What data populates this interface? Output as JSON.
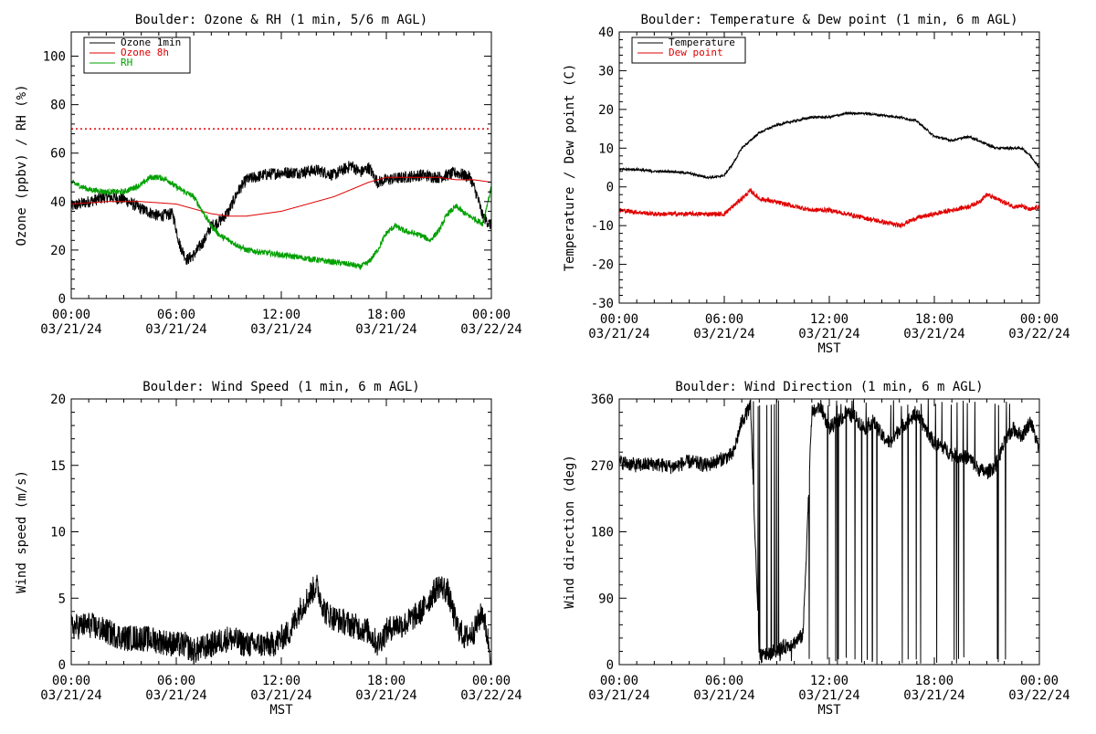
{
  "colors": {
    "black": "#000000",
    "red": "#e00000",
    "green": "#00a000"
  },
  "chart_data": [
    {
      "id": "ozone",
      "type": "line",
      "title": "Boulder: Ozone & RH (1 min, 5/6 m AGL)",
      "xlabel": "",
      "ylabel": "Ozone (ppbv) / RH (%)",
      "ylim": [
        0,
        110
      ],
      "yticks": [
        0,
        20,
        40,
        60,
        80,
        100
      ],
      "xlim": [
        0,
        24
      ],
      "xticks": [
        {
          "x": 0,
          "time": "00:00",
          "date": "03/21/24"
        },
        {
          "x": 6,
          "time": "06:00",
          "date": "03/21/24"
        },
        {
          "x": 12,
          "time": "12:00",
          "date": "03/21/24"
        },
        {
          "x": 18,
          "time": "18:00",
          "date": "03/21/24"
        },
        {
          "x": 24,
          "time": "00:00",
          "date": "03/22/24"
        }
      ],
      "grid": false,
      "legend": "top-left",
      "reference_line": {
        "y": 70,
        "color": "#e00000",
        "style": "dotted"
      },
      "series": [
        {
          "name": "Ozone 1min",
          "color": "#000000",
          "noise": 2.5,
          "x": [
            0,
            1,
            2,
            3,
            4,
            5,
            5.8,
            6.2,
            6.6,
            7,
            7.6,
            8,
            8.5,
            9,
            9.5,
            10,
            10.5,
            11,
            12,
            13,
            14,
            15,
            15.5,
            16,
            16.5,
            17,
            17.5,
            18,
            19,
            20,
            21,
            22,
            22.8,
            23.2,
            23.5,
            24
          ],
          "y": [
            38,
            40,
            42,
            41,
            37,
            34,
            35,
            22,
            16,
            18,
            24,
            30,
            32,
            36,
            44,
            49,
            50,
            51,
            52,
            52,
            53,
            51,
            53,
            55,
            52,
            54,
            48,
            49,
            50,
            51,
            50,
            52,
            50,
            42,
            34,
            30
          ]
        },
        {
          "name": "Ozone 8h",
          "color": "#e00000",
          "noise": 0,
          "x": [
            0,
            2,
            4,
            6,
            7,
            8,
            9,
            10,
            11,
            12,
            13,
            14,
            15,
            16,
            17,
            18,
            19,
            20,
            21,
            22,
            23,
            24
          ],
          "y": [
            39,
            40,
            40,
            39,
            37,
            35,
            34,
            34,
            35,
            36,
            38,
            40,
            42,
            45,
            48,
            50,
            50,
            50,
            50,
            49,
            49,
            48
          ]
        },
        {
          "name": "RH",
          "color": "#00a000",
          "noise": 1.2,
          "x": [
            0,
            1,
            2,
            3,
            4,
            4.5,
            5,
            5.5,
            6,
            7,
            7.5,
            8,
            8.5,
            9,
            9.5,
            10,
            11,
            12,
            13,
            14,
            15,
            16,
            16.5,
            17,
            17.5,
            18,
            18.5,
            19,
            20,
            20.5,
            21,
            21.5,
            22,
            22.5,
            23,
            23.5,
            24
          ],
          "y": [
            48,
            45,
            44,
            44,
            47,
            50,
            50,
            49,
            46,
            42,
            36,
            30,
            26,
            24,
            22,
            20,
            19,
            18,
            17,
            16,
            15,
            14,
            13,
            15,
            20,
            27,
            30,
            28,
            26,
            24,
            28,
            35,
            38,
            35,
            33,
            31,
            46
          ]
        }
      ]
    },
    {
      "id": "temp",
      "type": "line",
      "title": "Boulder: Temperature & Dew point (1 min, 6 m AGL)",
      "xlabel": "MST",
      "ylabel": "Temperature / Dew point (C)",
      "ylim": [
        -30,
        40
      ],
      "yticks": [
        -30,
        -20,
        -10,
        0,
        10,
        20,
        30,
        40
      ],
      "xlim": [
        0,
        24
      ],
      "xticks": [
        {
          "x": 0,
          "time": "00:00",
          "date": "03/21/24"
        },
        {
          "x": 6,
          "time": "06:00",
          "date": "03/21/24"
        },
        {
          "x": 12,
          "time": "12:00",
          "date": "03/21/24"
        },
        {
          "x": 18,
          "time": "18:00",
          "date": "03/21/24"
        },
        {
          "x": 24,
          "time": "00:00",
          "date": "03/22/24"
        }
      ],
      "grid": false,
      "legend": "top-left",
      "series": [
        {
          "name": "Temperature",
          "color": "#000000",
          "noise": 0.3,
          "x": [
            0,
            1,
            2,
            3,
            4,
            5,
            5.5,
            6,
            6.5,
            7,
            8,
            9,
            10,
            11,
            12,
            13,
            14,
            15,
            16,
            17,
            17.5,
            18,
            19,
            20,
            20.5,
            21,
            21.5,
            22,
            22.5,
            23,
            23.5,
            24
          ],
          "y": [
            4.5,
            4.5,
            4,
            4,
            3.5,
            2.5,
            2.5,
            3,
            6,
            10,
            14,
            16,
            17,
            18,
            18,
            19,
            19,
            18.5,
            18,
            17,
            15,
            13,
            12,
            13,
            12,
            11,
            10,
            10,
            10,
            10,
            8,
            5
          ]
        },
        {
          "name": "Dew point",
          "color": "#e00000",
          "noise": 0.6,
          "x": [
            0,
            1,
            2,
            3,
            4,
            5,
            6,
            6.5,
            7,
            7.5,
            8,
            9,
            10,
            11,
            12,
            13,
            14,
            15,
            16,
            16.5,
            17,
            18,
            19,
            20,
            20.5,
            21,
            21.5,
            22,
            22.5,
            23,
            23.5,
            24
          ],
          "y": [
            -6,
            -6.5,
            -7,
            -7,
            -7,
            -7,
            -7,
            -5,
            -3,
            -1,
            -3,
            -4,
            -5,
            -6,
            -6,
            -7,
            -8,
            -9,
            -10,
            -9,
            -8,
            -7,
            -6,
            -5,
            -4,
            -2,
            -3,
            -4,
            -5,
            -5,
            -6,
            -5
          ]
        }
      ]
    },
    {
      "id": "ws",
      "type": "line",
      "title": "Boulder: Wind Speed (1 min, 6 m AGL)",
      "xlabel": "MST",
      "ylabel": "Wind speed (m/s)",
      "ylim": [
        0,
        20
      ],
      "yticks": [
        0,
        5,
        10,
        15,
        20
      ],
      "xlim": [
        0,
        24
      ],
      "xticks": [
        {
          "x": 0,
          "time": "00:00",
          "date": "03/21/24"
        },
        {
          "x": 6,
          "time": "06:00",
          "date": "03/21/24"
        },
        {
          "x": 12,
          "time": "12:00",
          "date": "03/21/24"
        },
        {
          "x": 18,
          "time": "18:00",
          "date": "03/21/24"
        },
        {
          "x": 24,
          "time": "00:00",
          "date": "03/22/24"
        }
      ],
      "grid": false,
      "series": [
        {
          "name": "",
          "color": "#000000",
          "noise": 1.0,
          "x": [
            0,
            1,
            2,
            3,
            4,
            5,
            6,
            6.5,
            7,
            8,
            9,
            10,
            11,
            11.5,
            12,
            12.5,
            13,
            13.5,
            14,
            14.5,
            15,
            16,
            17,
            17.5,
            18,
            18.5,
            19,
            20,
            20.5,
            21,
            21.5,
            22,
            22.5,
            23,
            23.5,
            24
          ],
          "y": [
            2.8,
            3,
            2.5,
            2,
            2,
            1.8,
            1.5,
            1.5,
            1,
            1.5,
            2,
            1.5,
            1.5,
            1.5,
            2,
            2.5,
            4,
            5,
            6,
            4,
            3.5,
            3,
            2.5,
            1.5,
            2.5,
            3,
            3,
            4,
            5,
            6,
            5.5,
            3,
            2,
            2.5,
            4,
            0.5
          ]
        }
      ]
    },
    {
      "id": "wd",
      "type": "line",
      "title": "Boulder: Wind Direction (1 min, 6 m AGL)",
      "xlabel": "MST",
      "ylabel": "Wind direction (deg)",
      "ylim": [
        0,
        360
      ],
      "yticks": [
        0,
        90,
        180,
        270,
        360
      ],
      "xlim": [
        0,
        24
      ],
      "xticks": [
        {
          "x": 0,
          "time": "00:00",
          "date": "03/21/24"
        },
        {
          "x": 6,
          "time": "06:00",
          "date": "03/21/24"
        },
        {
          "x": 12,
          "time": "12:00",
          "date": "03/21/24"
        },
        {
          "x": 18,
          "time": "18:00",
          "date": "03/21/24"
        },
        {
          "x": 24,
          "time": "00:00",
          "date": "03/22/24"
        }
      ],
      "grid": false,
      "series": [
        {
          "name": "",
          "color": "#000000",
          "noise": 10,
          "x": [
            0,
            1,
            2,
            3,
            4,
            5,
            6,
            6.5,
            7,
            7.5,
            8,
            8.5,
            9,
            9.5,
            10,
            10.5,
            11,
            11.5,
            12,
            12.5,
            13,
            13.5,
            14,
            14.5,
            15,
            15.5,
            16,
            16.5,
            17,
            17.5,
            18,
            18.5,
            19,
            20,
            20.5,
            21,
            21.5,
            22,
            22.5,
            23,
            23.5,
            24
          ],
          "y": [
            275,
            270,
            272,
            268,
            275,
            270,
            280,
            285,
            330,
            350,
            10,
            15,
            20,
            25,
            30,
            40,
            340,
            350,
            320,
            330,
            340,
            335,
            320,
            330,
            310,
            300,
            320,
            330,
            340,
            320,
            300,
            295,
            285,
            280,
            265,
            260,
            270,
            300,
            320,
            310,
            330,
            290
          ]
        }
      ]
    }
  ]
}
